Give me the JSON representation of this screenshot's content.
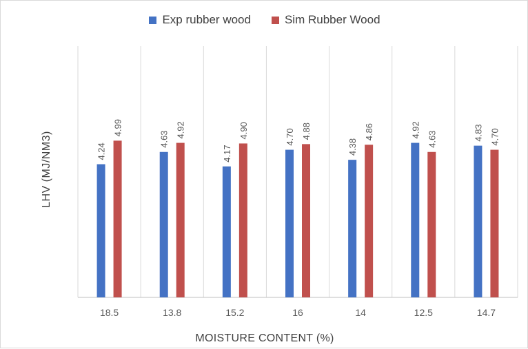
{
  "chart_data": {
    "type": "bar",
    "title": "",
    "xlabel": "MOISTURE CONTENT (%)",
    "ylabel": "LHV (MJ/NM3)",
    "categories": [
      "18.5",
      "13.8",
      "15.2",
      "16",
      "14",
      "12.5",
      "14.7"
    ],
    "series": [
      {
        "name": "Exp rubber wood",
        "color": "#4472c4",
        "values": [
          4.24,
          4.63,
          4.17,
          4.7,
          4.38,
          4.92,
          4.83
        ],
        "labels": [
          "4.24",
          "4.63",
          "4.17",
          "4.70",
          "4.38",
          "4.92",
          "4.83"
        ]
      },
      {
        "name": "Sim Rubber Wood",
        "color": "#c0504d",
        "values": [
          4.99,
          4.92,
          4.9,
          4.88,
          4.86,
          4.63,
          4.7
        ],
        "labels": [
          "4.99",
          "4.92",
          "4.90",
          "4.88",
          "4.86",
          "4.63",
          "4.70"
        ]
      }
    ],
    "ylim": [
      0,
      8
    ],
    "legend_position": "top",
    "grid": "vertical"
  }
}
